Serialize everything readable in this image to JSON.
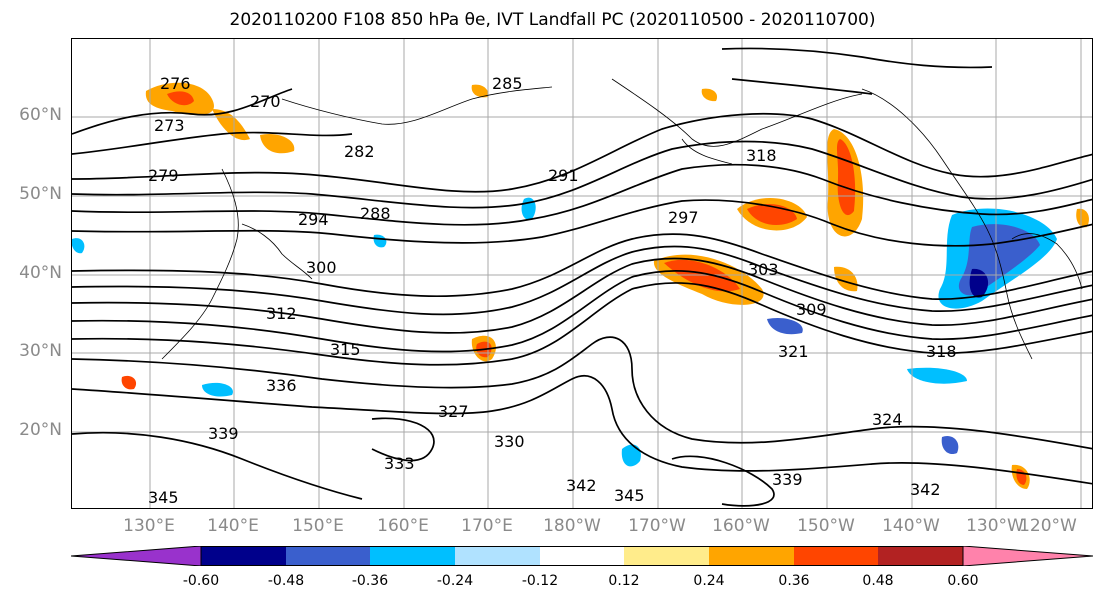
{
  "title": "2020110200 F108 850 hPa θe, IVT Landfall PC (2020110500 - 2020110700)",
  "lat_labels": [
    "60°N",
    "50°N",
    "40°N",
    "30°N",
    "20°N"
  ],
  "lon_labels": [
    "130°E",
    "140°E",
    "150°E",
    "160°E",
    "170°E",
    "180°W",
    "170°W",
    "160°W",
    "150°W",
    "140°W",
    "130°W",
    "120°W"
  ],
  "contour_labels": [
    "273",
    "270",
    "276",
    "279",
    "282",
    "285",
    "288",
    "291",
    "294",
    "297",
    "300",
    "303",
    "309",
    "312",
    "315",
    "318",
    "321",
    "324",
    "327",
    "330",
    "333",
    "336",
    "339",
    "342",
    "345"
  ],
  "colorbar": {
    "ticks": [
      "-0.60",
      "-0.48",
      "-0.36",
      "-0.24",
      "-0.12",
      "0.12",
      "0.24",
      "0.36",
      "0.48",
      "0.60"
    ],
    "colors": [
      "#9932cc",
      "#00008b",
      "#3a5fcd",
      "#00bfff",
      "#b0e2ff",
      "#ffffff",
      "#ffec8b",
      "#ffa500",
      "#ff4500",
      "#b22222",
      "#ff82ab"
    ]
  },
  "colors": {
    "positive_strong": "#ff4500",
    "positive_mid": "#ffa500",
    "positive_weak": "#ffec8b",
    "negative_weak": "#b0e2ff",
    "negative_mid": "#00bfff",
    "negative_strong": "#3a5fcd",
    "negative_max": "#00008b",
    "grid": "#a9a9a9",
    "contour": "#000000"
  }
}
